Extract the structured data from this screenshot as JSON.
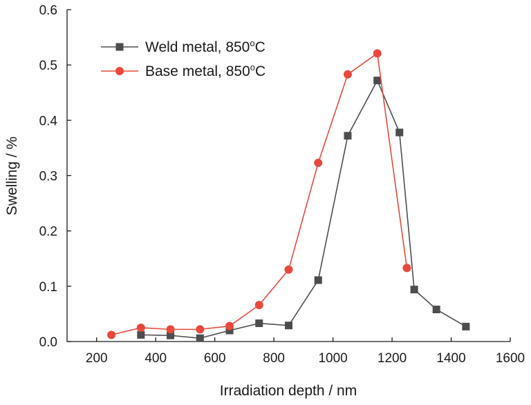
{
  "chart_data": {
    "type": "line",
    "title": "",
    "xlabel": "Irradiation depth / nm",
    "ylabel": "Swelling / %",
    "xlim": [
      100,
      1600
    ],
    "ylim": [
      0,
      0.6
    ],
    "xticks": [
      200,
      400,
      600,
      800,
      1000,
      1200,
      1400,
      1600
    ],
    "yticks": [
      0.0,
      0.1,
      0.2,
      0.3,
      0.4,
      0.5,
      0.6
    ],
    "xtick_labels": [
      "200",
      "400",
      "600",
      "800",
      "1000",
      "1200",
      "1400",
      "1600"
    ],
    "ytick_labels": [
      "0.0",
      "0.1",
      "0.2",
      "0.3",
      "0.4",
      "0.5",
      "0.6"
    ],
    "grid": false,
    "legend_position": "top-left",
    "series": [
      {
        "name": "Weld metal, 850",
        "name_sup": "o",
        "name_tail": "C",
        "color": "#4d4d4d",
        "marker": "square",
        "x": [
          350,
          450,
          550,
          650,
          750,
          850,
          950,
          1050,
          1150,
          1225,
          1275,
          1350,
          1450
        ],
        "values": [
          0.012,
          0.011,
          0.006,
          0.02,
          0.033,
          0.029,
          0.111,
          0.372,
          0.472,
          0.378,
          0.094,
          0.058,
          0.027
        ]
      },
      {
        "name": "Base metal, 850",
        "name_sup": "o",
        "name_tail": "C",
        "color": "#e8493a",
        "marker": "circle",
        "x": [
          250,
          350,
          450,
          550,
          650,
          750,
          850,
          950,
          1050,
          1150,
          1250
        ],
        "values": [
          0.012,
          0.025,
          0.022,
          0.022,
          0.028,
          0.066,
          0.13,
          0.323,
          0.483,
          0.521,
          0.133
        ]
      }
    ]
  }
}
